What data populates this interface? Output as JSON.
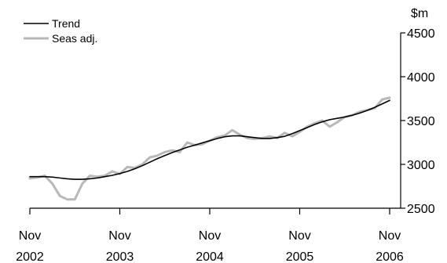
{
  "chart_data": {
    "type": "line",
    "title": "",
    "xlabel": "",
    "ylabel": "$m",
    "ylim": [
      2500,
      4500
    ],
    "yticks": [
      2500,
      3000,
      3500,
      4000,
      4500
    ],
    "y_tick_labels": [
      "2500",
      "3000",
      "3500",
      "4000",
      "4500"
    ],
    "xlim": [
      "2002-11",
      "2006-11"
    ],
    "x_tick_labels": [
      {
        "month": "Nov",
        "year": "2002"
      },
      {
        "month": "Nov",
        "year": "2003"
      },
      {
        "month": "Nov",
        "year": "2004"
      },
      {
        "month": "Nov",
        "year": "2005"
      },
      {
        "month": "Nov",
        "year": "2006"
      }
    ],
    "grid": false,
    "legend_position": "top-left",
    "x": [
      "2002-11",
      "2002-12",
      "2003-01",
      "2003-02",
      "2003-03",
      "2003-04",
      "2003-05",
      "2003-06",
      "2003-07",
      "2003-08",
      "2003-09",
      "2003-10",
      "2003-11",
      "2003-12",
      "2004-01",
      "2004-02",
      "2004-03",
      "2004-04",
      "2004-05",
      "2004-06",
      "2004-07",
      "2004-08",
      "2004-09",
      "2004-10",
      "2004-11",
      "2004-12",
      "2005-01",
      "2005-02",
      "2005-03",
      "2005-04",
      "2005-05",
      "2005-06",
      "2005-07",
      "2005-08",
      "2005-09",
      "2005-10",
      "2005-11",
      "2005-12",
      "2006-01",
      "2006-02",
      "2006-03",
      "2006-04",
      "2006-05",
      "2006-06",
      "2006-07",
      "2006-08",
      "2006-09",
      "2006-10",
      "2006-11"
    ],
    "series": [
      {
        "name": "Trend",
        "color": "#000000",
        "values": [
          2860,
          2860,
          2860,
          2855,
          2845,
          2835,
          2830,
          2830,
          2835,
          2845,
          2860,
          2875,
          2895,
          2920,
          2950,
          2985,
          3025,
          3065,
          3100,
          3135,
          3165,
          3195,
          3220,
          3245,
          3270,
          3295,
          3315,
          3325,
          3325,
          3315,
          3305,
          3295,
          3295,
          3305,
          3320,
          3350,
          3385,
          3420,
          3455,
          3485,
          3510,
          3525,
          3540,
          3560,
          3585,
          3615,
          3650,
          3690,
          3730
        ]
      },
      {
        "name": "Seas adj.",
        "color": "#b8b8b8",
        "values": [
          2840,
          2850,
          2870,
          2780,
          2640,
          2600,
          2600,
          2780,
          2870,
          2860,
          2870,
          2920,
          2890,
          2970,
          2960,
          3000,
          3080,
          3100,
          3140,
          3160,
          3140,
          3250,
          3220,
          3230,
          3270,
          3310,
          3330,
          3390,
          3340,
          3300,
          3290,
          3300,
          3320,
          3300,
          3360,
          3320,
          3370,
          3430,
          3470,
          3500,
          3430,
          3480,
          3540,
          3560,
          3600,
          3620,
          3640,
          3740,
          3760
        ]
      }
    ]
  }
}
